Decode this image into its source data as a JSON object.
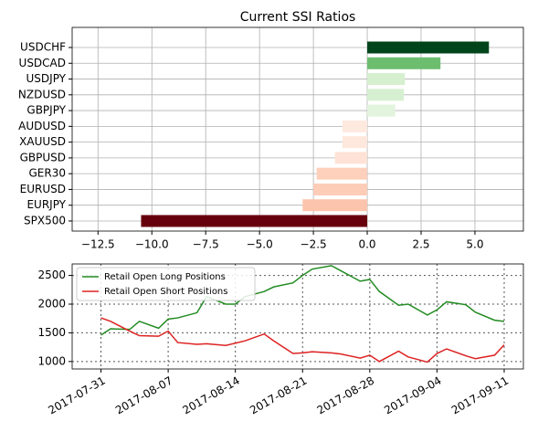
{
  "chart_data": [
    {
      "type": "barh",
      "title": "Current SSI Ratios",
      "categories": [
        "USDCHF",
        "USDCAD",
        "USDJPY",
        "NZDUSD",
        "GBPJPY",
        "AUDUSD",
        "XAUUSD",
        "GBPUSD",
        "GER30",
        "EURUSD",
        "EURJPY",
        "SPX500"
      ],
      "values": [
        5.65,
        3.4,
        1.75,
        1.7,
        1.3,
        -1.15,
        -1.15,
        -1.5,
        -2.35,
        -2.5,
        -3.0,
        -10.5
      ],
      "colors": [
        "#00441b",
        "#6dbd6f",
        "#d5efcf",
        "#d7efd1",
        "#e3f4de",
        "#fee9df",
        "#fee8dd",
        "#fee2d5",
        "#fdd0bc",
        "#fdcdb8",
        "#fcc4ad",
        "#67000d"
      ],
      "xlim": [
        -13.7,
        7.25
      ],
      "xticks": [
        {
          "value": -12.5,
          "label": "−12.5"
        },
        {
          "value": -10,
          "label": "−10.0"
        },
        {
          "value": -7.5,
          "label": "−7.5"
        },
        {
          "value": -5,
          "label": "−5.0"
        },
        {
          "value": -2.5,
          "label": "−2.5"
        },
        {
          "value": 0,
          "label": "0.0"
        },
        2.5,
        {
          "value": 5,
          "label": "5.0"
        }
      ],
      "grid": true
    },
    {
      "type": "line",
      "x": [
        "2017-07-31",
        "2017-08-01",
        "2017-08-03",
        "2017-08-04",
        "2017-08-06",
        "2017-08-07",
        "2017-08-08",
        "2017-08-10",
        "2017-08-11",
        "2017-08-13",
        "2017-08-14",
        "2017-08-15",
        "2017-08-17",
        "2017-08-18",
        "2017-08-20",
        "2017-08-21",
        "2017-08-22",
        "2017-08-24",
        "2017-08-25",
        "2017-08-27",
        "2017-08-28",
        "2017-08-29",
        "2017-08-31",
        "2017-09-01",
        "2017-09-03",
        "2017-09-04",
        "2017-09-05",
        "2017-09-07",
        "2017-09-08",
        "2017-09-10",
        "2017-09-11"
      ],
      "series": [
        {
          "name": "Retail Open Long Positions",
          "color": "#228b22",
          "values": [
            1460,
            1570,
            1560,
            1700,
            1580,
            1740,
            1760,
            1850,
            2130,
            2000,
            2000,
            2130,
            2220,
            2300,
            2370,
            2500,
            2610,
            2670,
            2580,
            2400,
            2430,
            2220,
            1980,
            2000,
            1810,
            1900,
            2040,
            1990,
            1860,
            1720,
            1700
          ]
        },
        {
          "name": "Retail Open Short Positions",
          "color": "#dd2222",
          "values": [
            1760,
            1700,
            1530,
            1450,
            1440,
            1530,
            1330,
            1300,
            1310,
            1280,
            1320,
            1360,
            1480,
            1360,
            1140,
            1150,
            1170,
            1150,
            1130,
            1060,
            1110,
            1000,
            1180,
            1080,
            990,
            1140,
            1220,
            1100,
            1050,
            1110,
            1290
          ]
        }
      ],
      "xlim": [
        "2017-07-28",
        "2017-09-13"
      ],
      "xticks": [
        "2017-07-31",
        "2017-08-07",
        "2017-08-14",
        "2017-08-21",
        "2017-08-28",
        "2017-09-04",
        "2017-09-11"
      ],
      "ylim": [
        870,
        2700
      ],
      "yticks": [
        1000,
        1500,
        2000,
        2500
      ],
      "grid": true,
      "grid_style": "dotted",
      "legend": "upper-left"
    }
  ]
}
